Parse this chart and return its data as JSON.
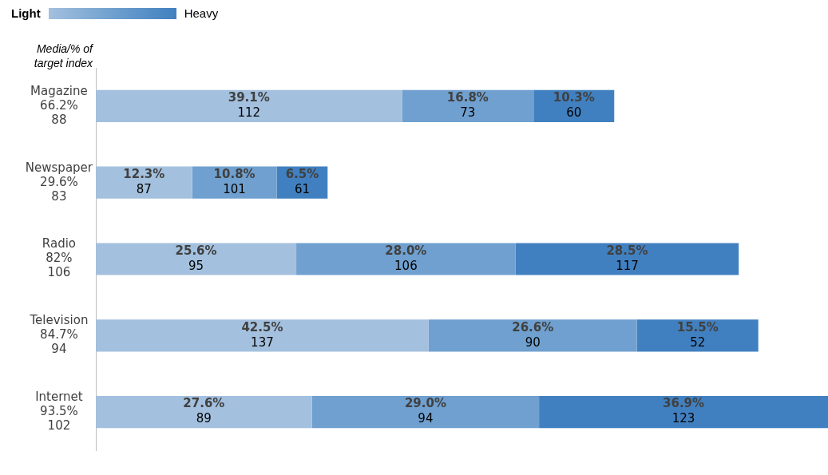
{
  "chart_data": {
    "type": "bar",
    "orientation": "horizontal",
    "stacked": true,
    "ylabel": "Media/% of target index",
    "categories": [
      "Magazine\n66.2%\n88",
      "Newspaper\n29.6%\n83",
      "Radio\n82%\n106",
      "Television\n84.7%\n94",
      "Internet\n93.5%\n102"
    ],
    "series": [
      {
        "color": "#a3c0de",
        "values": [
          39.1,
          12.3,
          25.6,
          42.5,
          27.6
        ],
        "value_labels": [
          "39.1%\n112",
          "12.3%\n87",
          "25.6%\n95",
          "42.5%\n137",
          "27.6%\n89"
        ]
      },
      {
        "color": "#6fa0cf",
        "values": [
          16.8,
          10.8,
          28.0,
          26.6,
          29.0
        ],
        "value_labels": [
          "16.8%\n73",
          "10.8%\n101",
          "28.0%\n106",
          "26.6%\n90",
          "29.0%\n94"
        ]
      },
      {
        "color": "#4180c0",
        "values": [
          10.3,
          6.5,
          28.5,
          15.5,
          36.9
        ],
        "value_labels": [
          "10.3%\n60",
          "6.5%\n61",
          "28.5%\n117",
          "15.5%\n52",
          "36.9%\n123"
        ]
      }
    ],
    "annotations": [
      "Light",
      "Heavy"
    ],
    "grid": false
  }
}
